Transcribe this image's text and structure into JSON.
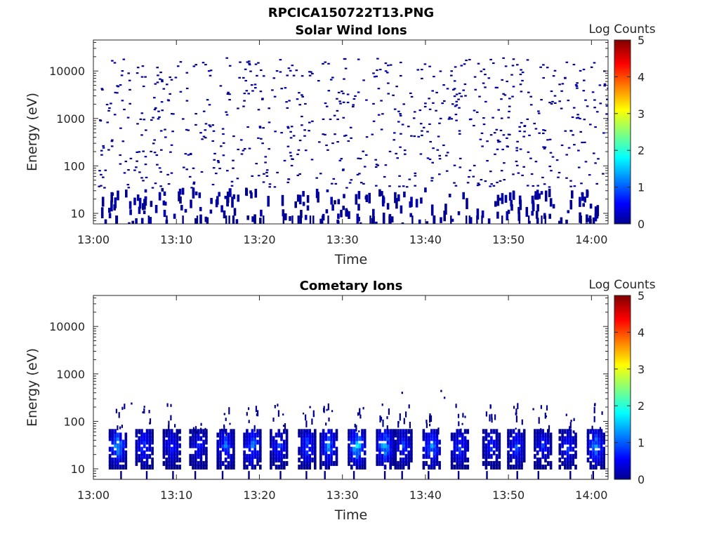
{
  "figure": {
    "title": "RPCICA150722T13.PNG"
  },
  "colorbar": {
    "label": "Log Counts",
    "ticks": [
      "0",
      "1",
      "2",
      "3",
      "4",
      "5"
    ],
    "range": [
      0,
      5
    ],
    "colormap": "jet"
  },
  "chart_data": [
    {
      "type": "heatmap",
      "title": "Solar Wind Ions",
      "xlabel": "Time",
      "ylabel": "Energy (eV)",
      "xticks": [
        "13:00",
        "13:10",
        "13:20",
        "13:30",
        "13:40",
        "13:50",
        "14:00"
      ],
      "xlim_minutes_after_13_00": [
        0,
        62
      ],
      "yscale": "log",
      "yticks": [
        "10",
        "100",
        "1000",
        "10000"
      ],
      "ylim": [
        6,
        45000
      ],
      "grid": false,
      "colorbar_label": "Log Counts",
      "description_level": "sparse single-count (log ~0) events spread across 10 eV - 20 keV, denser streaks below 50 eV"
    },
    {
      "type": "heatmap",
      "title": "Cometary Ions",
      "xlabel": "Time",
      "ylabel": "Energy (eV)",
      "xticks": [
        "13:00",
        "13:10",
        "13:20",
        "13:30",
        "13:40",
        "13:50",
        "14:00"
      ],
      "xlim_minutes_after_13_00": [
        0,
        62
      ],
      "yscale": "log",
      "yticks": [
        "10",
        "100",
        "1000",
        "10000"
      ],
      "ylim": [
        6,
        45000
      ],
      "grid": false,
      "colorbar_label": "Log Counts",
      "bursts_minute": [
        2.8,
        6.0,
        9.3,
        12.5,
        15.8,
        19.0,
        22.2,
        25.6,
        28.2,
        31.6,
        35.0,
        37.2,
        40.6,
        44.0,
        47.8,
        50.8,
        54.0,
        57.0,
        60.4
      ],
      "burst_peak_log_counts": [
        1.7,
        1.1,
        0.9,
        0.9,
        1.3,
        1.5,
        1.0,
        1.2,
        1.4,
        2.0,
        1.8,
        1.0,
        1.6,
        1.1,
        0.9,
        1.1,
        0.9,
        1.0,
        1.6
      ],
      "burst_energy_range_ev": [
        10,
        150
      ]
    }
  ]
}
